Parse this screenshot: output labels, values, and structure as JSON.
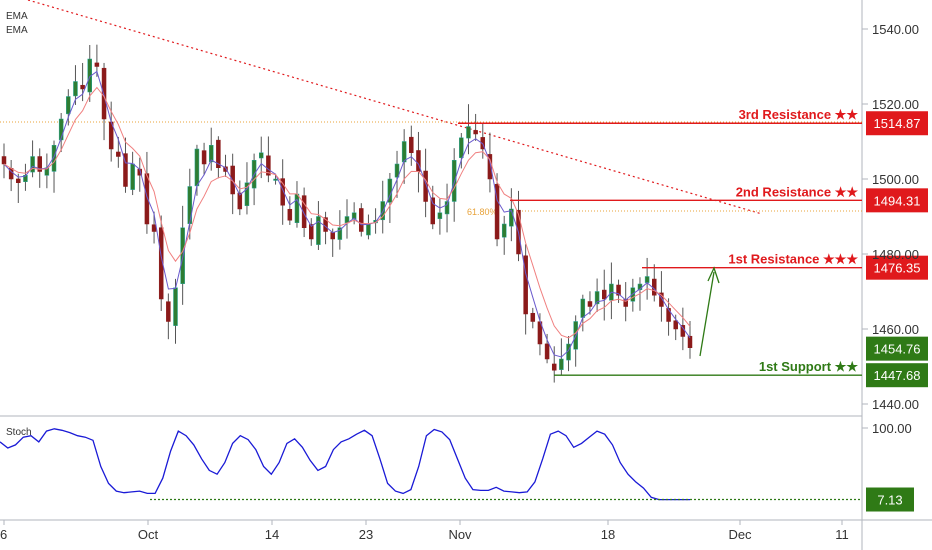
{
  "chart_data": {
    "type": "candlestick",
    "indicators": [
      "EMA",
      "EMA"
    ],
    "oscillator_label": "Stoch",
    "price_axis": {
      "ticks": [
        1440,
        1460,
        1480,
        1500,
        1520,
        1540
      ],
      "labels": [
        "1440.00",
        "1460.00",
        "1480.00",
        "1500.00",
        "1520.00",
        "1540.00"
      ]
    },
    "stoch_axis": {
      "ticks": [
        100
      ],
      "labels": [
        "100.00"
      ]
    },
    "x_labels": [
      "6",
      "Oct",
      "14",
      "23",
      "Nov",
      "18",
      "Dec",
      "11"
    ],
    "fib_label": "61.80%",
    "levels": [
      {
        "name": "3rd Resistance ★★",
        "value": 1514.87,
        "value_label": "1514.87",
        "color": "#e0191c"
      },
      {
        "name": "2nd Resistance ★★",
        "value": 1494.31,
        "value_label": "1494.31",
        "color": "#e0191c"
      },
      {
        "name": "1st Resistance ★★★",
        "value": 1476.35,
        "value_label": "1476.35",
        "color": "#e0191c"
      },
      {
        "name": "1st Support ★★",
        "value": 1447.68,
        "value_label": "1447.68",
        "color": "#2f7a16"
      }
    ],
    "current_price": {
      "value": 1454.76,
      "label": "1454.76",
      "color": "#2f7a16"
    },
    "stoch_current": {
      "value": 7.13,
      "label": "7.13",
      "color": "#2f7a16"
    },
    "closes": [
      1504,
      1500,
      1499,
      1501,
      1506,
      1502,
      1503,
      1509,
      1516,
      1522,
      1526,
      1524,
      1532,
      1530,
      1516,
      1508,
      1506,
      1498,
      1504,
      1501,
      1488,
      1486,
      1468,
      1462,
      1471,
      1487,
      1498,
      1508,
      1504,
      1509,
      1503,
      1502,
      1496,
      1492,
      1499,
      1505,
      1507,
      1501,
      1500,
      1493,
      1489,
      1496,
      1487,
      1484,
      1490,
      1486,
      1484,
      1487,
      1490,
      1491,
      1486,
      1488,
      1489,
      1494,
      1500,
      1504,
      1510,
      1507,
      1502,
      1494,
      1488,
      1491,
      1494,
      1505,
      1511,
      1514,
      1512,
      1508,
      1500,
      1484,
      1488,
      1492,
      1480,
      1464,
      1462,
      1456,
      1452,
      1449,
      1452,
      1456,
      1462,
      1468,
      1466,
      1470,
      1468,
      1472,
      1469,
      1466,
      1471,
      1472,
      1474,
      1469,
      1466,
      1462,
      1460,
      1458,
      1455
    ],
    "stoch": [
      82,
      74,
      78,
      88,
      90,
      82,
      96,
      99,
      97,
      94,
      90,
      88,
      84,
      50,
      28,
      18,
      16,
      17,
      18,
      15,
      15,
      35,
      70,
      96,
      90,
      78,
      60,
      45,
      40,
      55,
      80,
      90,
      85,
      72,
      50,
      40,
      55,
      80,
      86,
      75,
      58,
      45,
      50,
      72,
      82,
      86,
      92,
      97,
      90,
      60,
      28,
      18,
      15,
      20,
      50,
      90,
      98,
      95,
      85,
      60,
      35,
      20,
      19,
      19,
      23,
      18,
      17,
      16,
      17,
      30,
      60,
      92,
      96,
      90,
      75,
      80,
      88,
      96,
      92,
      78,
      55,
      40,
      30,
      22,
      10,
      7,
      7,
      7,
      7,
      7
    ]
  }
}
